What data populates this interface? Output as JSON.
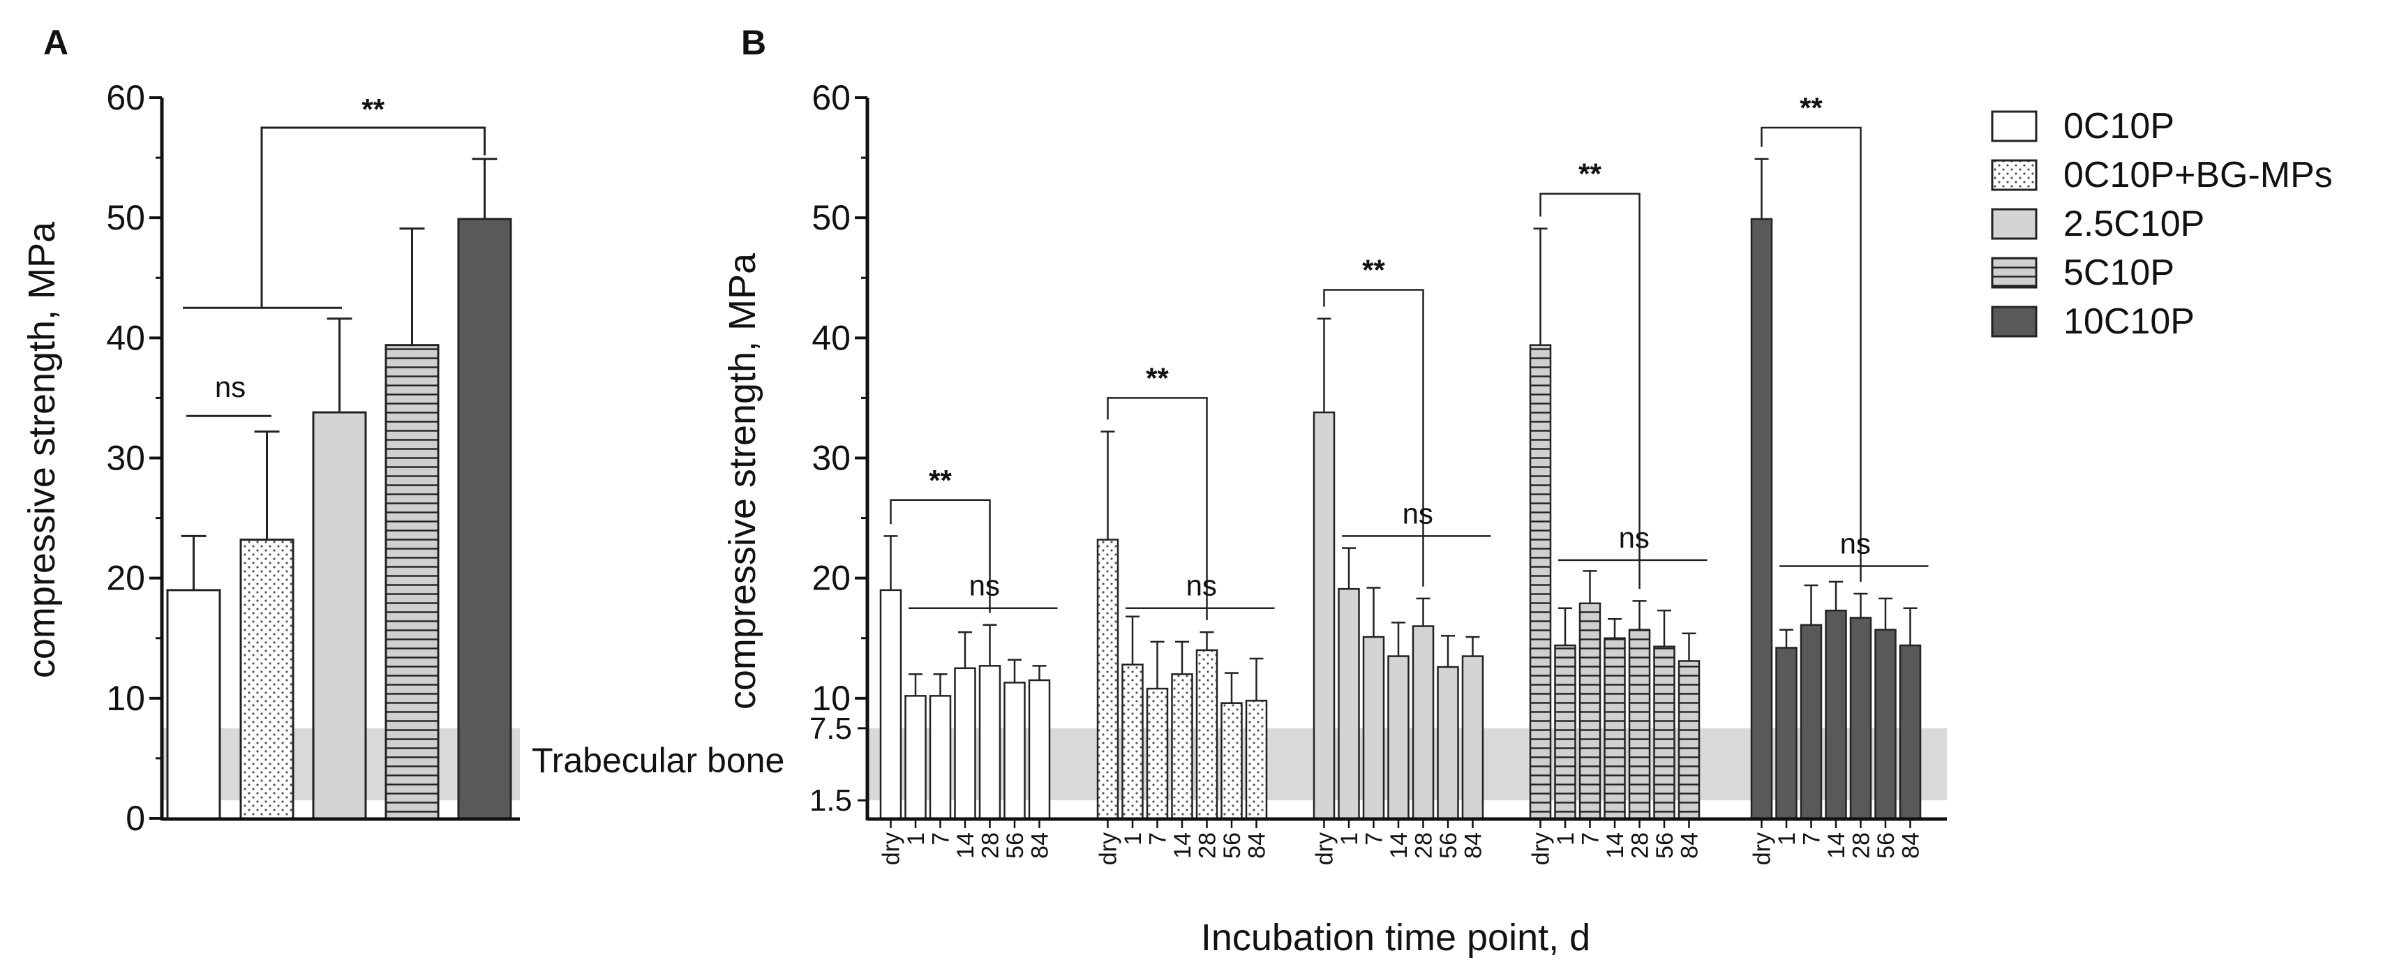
{
  "panels": {
    "a": "A",
    "b": "B"
  },
  "trabecular_label": "Trabecular bone",
  "legend": [
    {
      "label": "0C10P",
      "pattern": "white"
    },
    {
      "label": "0C10P+BG-MPs",
      "pattern": "dots"
    },
    {
      "label": "2.5C10P",
      "pattern": "light"
    },
    {
      "label": "5C10P",
      "pattern": "hstripe"
    },
    {
      "label": "10C10P",
      "pattern": "dark"
    }
  ],
  "chart_data": [
    {
      "type": "bar",
      "panel": "A",
      "ylabel": "compressive strength, MPa",
      "xlabel": "",
      "ylim": [
        0,
        60
      ],
      "yticks": [
        "0",
        "10",
        "20",
        "30",
        "40",
        "50",
        "60"
      ],
      "trabecular_band": [
        1.5,
        7.5
      ],
      "categories": [
        "0C10P",
        "0C10P+BG-MPs",
        "2.5C10P",
        "5C10P",
        "10C10P"
      ],
      "values": [
        19,
        23.2,
        33.8,
        39.4,
        49.9
      ],
      "errors": [
        4.5,
        9.0,
        7.8,
        9.7,
        5.0
      ],
      "annotations": [
        {
          "text": "ns",
          "from": 0,
          "to": 1,
          "y": 33.5
        },
        {
          "text": "**",
          "group": [
            0,
            2
          ],
          "to": 4,
          "y": 57.5
        }
      ]
    },
    {
      "type": "bar",
      "panel": "B",
      "ylabel": "compressive strength, MPa",
      "xlabel": "Incubation time point, d",
      "ylim": [
        0,
        60
      ],
      "yticks": [
        "10",
        "20",
        "30",
        "40",
        "50",
        "60"
      ],
      "extra_yticks": [
        "1.5",
        "7.5"
      ],
      "trabecular_band": [
        1.5,
        7.5
      ],
      "categories": [
        "dry",
        "1",
        "7",
        "14",
        "28",
        "56",
        "84"
      ],
      "series": [
        {
          "name": "0C10P",
          "values": [
            19,
            10.2,
            10.2,
            12.5,
            12.7,
            11.3,
            11.5
          ],
          "errors": [
            4.5,
            1.8,
            1.8,
            3.0,
            3.4,
            1.9,
            1.2
          ],
          "sig_stars": "**",
          "stars_y": 26.5,
          "ns_y": 17.5,
          "sig_ns": "ns"
        },
        {
          "name": "0C10P+BG-MPs",
          "values": [
            23.2,
            12.8,
            10.8,
            12.0,
            14.0,
            9.6,
            9.8
          ],
          "errors": [
            9.0,
            4.0,
            3.9,
            2.7,
            1.5,
            2.5,
            3.5
          ],
          "sig_stars": "**",
          "stars_y": 35.0,
          "ns_y": 17.5,
          "sig_ns": "ns"
        },
        {
          "name": "2.5C10P",
          "values": [
            33.8,
            19.1,
            15.1,
            13.5,
            16.0,
            12.6,
            13.5
          ],
          "errors": [
            7.8,
            3.4,
            4.1,
            2.8,
            2.3,
            2.6,
            1.6
          ],
          "sig_stars": "**",
          "stars_y": 44.0,
          "ns_y": 23.5,
          "sig_ns": "ns"
        },
        {
          "name": "5C10P",
          "values": [
            39.4,
            14.4,
            17.9,
            15.0,
            15.7,
            14.3,
            13.1
          ],
          "errors": [
            9.7,
            3.1,
            2.7,
            1.6,
            2.4,
            3.0,
            2.3
          ],
          "sig_stars": "**",
          "stars_y": 52.0,
          "ns_y": 21.5,
          "sig_ns": "ns"
        },
        {
          "name": "10C10P",
          "values": [
            49.9,
            14.2,
            16.1,
            17.3,
            16.7,
            15.7,
            14.4
          ],
          "errors": [
            5.0,
            1.5,
            3.3,
            2.4,
            2.0,
            2.6,
            3.1
          ],
          "sig_stars": "**",
          "stars_y": 57.5,
          "ns_y": 21.0,
          "sig_ns": "ns"
        }
      ]
    }
  ]
}
